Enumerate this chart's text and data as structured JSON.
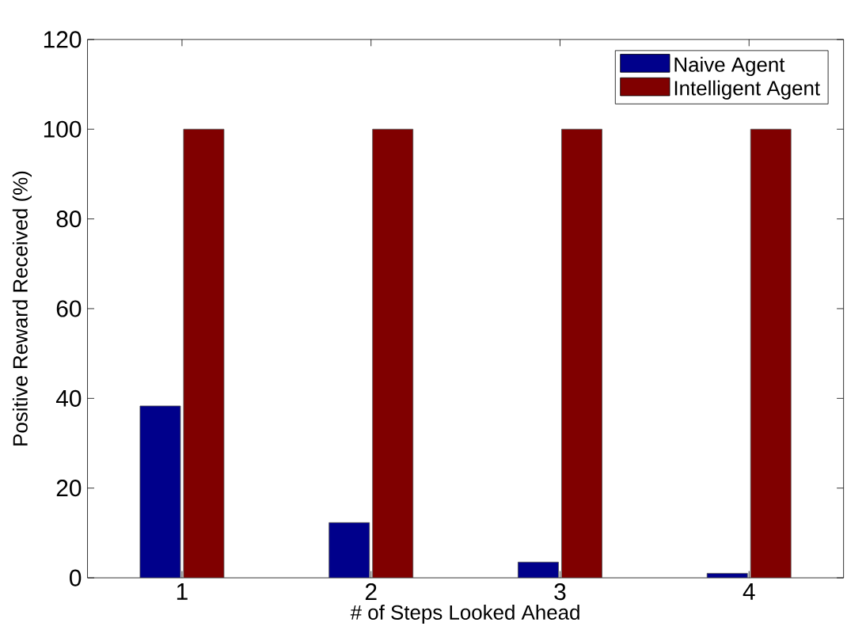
{
  "chart_data": {
    "type": "bar",
    "xlabel": "# of Steps Looked Ahead",
    "ylabel": "Positive Reward Received (%)",
    "categories": [
      "1",
      "2",
      "3",
      "4"
    ],
    "series": [
      {
        "name": "Naive Agent",
        "color": "#00008b",
        "values": [
          38.3,
          12.3,
          3.5,
          1.0
        ]
      },
      {
        "name": "Intelligent Agent",
        "color": "#800000",
        "values": [
          100,
          100,
          100,
          100
        ]
      }
    ],
    "ylim": [
      0,
      120
    ],
    "yticks": [
      0,
      20,
      40,
      60,
      80,
      100,
      120
    ],
    "grid": false,
    "legend": "top right"
  }
}
